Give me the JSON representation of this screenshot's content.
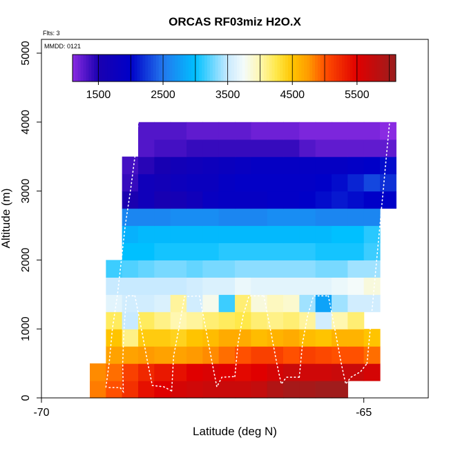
{
  "chart_data": {
    "type": "heatmap",
    "title": "ORCAS RF03miz H2O.X",
    "xlabel": "Latitude (deg N)",
    "ylabel": "Altitude (m)",
    "notes": {
      "flights": "Flts: 3",
      "date": "MMDD: 0121"
    },
    "xlim": [
      -70,
      -64
    ],
    "ylim": [
      0,
      5200
    ],
    "x_ticks": [
      -70,
      -65
    ],
    "x_tick_labels": [
      "-70",
      "-65"
    ],
    "y_ticks": [
      0,
      1000,
      2000,
      3000,
      4000,
      5000
    ],
    "y_tick_labels": [
      "0",
      "1000",
      "2000",
      "3000",
      "4000",
      "5000"
    ],
    "colorbar": {
      "range": [
        1100,
        6100
      ],
      "ticks": [
        1500,
        2500,
        3500,
        4500,
        5500
      ],
      "tick_labels": [
        "1500",
        "2500",
        "3500",
        "4500",
        "5500"
      ],
      "stops": [
        {
          "v": 1100,
          "c": "#8a2be2"
        },
        {
          "v": 1500,
          "c": "#1a00b0"
        },
        {
          "v": 2000,
          "c": "#0000c8"
        },
        {
          "v": 2500,
          "c": "#2277ee"
        },
        {
          "v": 3000,
          "c": "#00c0ff"
        },
        {
          "v": 3500,
          "c": "#c8eaff"
        },
        {
          "v": 3750,
          "c": "#f4fbfa"
        },
        {
          "v": 4000,
          "c": "#fff7b0"
        },
        {
          "v": 4250,
          "c": "#ffe84a"
        },
        {
          "v": 4500,
          "c": "#ffc400"
        },
        {
          "v": 4750,
          "c": "#ff9a00"
        },
        {
          "v": 5000,
          "c": "#ff5000"
        },
        {
          "v": 5500,
          "c": "#e00000"
        },
        {
          "v": 6100,
          "c": "#9a1e1e"
        }
      ]
    },
    "cell_width_deg": 0.25,
    "cell_height_m": 250,
    "rows": [
      {
        "y": 0,
        "x_start": -69.25,
        "values": [
          4850,
          5000,
          5200,
          5400,
          5500,
          5600,
          5650,
          5700,
          5700,
          5700,
          5750,
          5900,
          6000,
          6000,
          6050,
          6050
        ]
      },
      {
        "y": 250,
        "x_start": -69.25,
        "values": [
          4800,
          4900,
          5100,
          5250,
          5350,
          5400,
          5500,
          5550,
          5500,
          5450,
          5500,
          5600,
          5700,
          5650,
          5650,
          5700,
          5700,
          5600
        ]
      },
      {
        "y": 500,
        "x_start": -69.0,
        "values": [
          4700,
          4700,
          4750,
          4700,
          4700,
          4750,
          4800,
          4900,
          5000,
          5100,
          5100,
          5000,
          5100,
          5050,
          5000,
          5000,
          4900
        ]
      },
      {
        "y": 750,
        "x_start": -69.0,
        "values": [
          4500,
          4100,
          4450,
          4450,
          4400,
          4500,
          4550,
          4650,
          4650,
          4550,
          4600,
          4650,
          4550,
          4500,
          4600,
          4600,
          4500
        ]
      },
      {
        "y": 1000,
        "x_start": -69.0,
        "values": [
          4200,
          3500,
          4200,
          4100,
          4000,
          4050,
          4150,
          4200,
          4250,
          4150,
          4100,
          4150,
          4050,
          3550,
          4000,
          4150
        ]
      },
      {
        "y": 1250,
        "x_start": -69.0,
        "values": [
          3650,
          3550,
          3550,
          3600,
          4050,
          3550,
          3800,
          3150,
          4150,
          3850,
          3950,
          3900,
          3400,
          2800,
          3400,
          3550,
          3550
        ]
      },
      {
        "y": 1500,
        "x_start": -69.0,
        "values": [
          3500,
          3500,
          3500,
          3500,
          3500,
          3550,
          3600,
          3600,
          3700,
          3650,
          3650,
          3650,
          3650,
          3650,
          3700,
          3750,
          3850
        ]
      },
      {
        "y": 1750,
        "x_start": -69.0,
        "values": [
          3150,
          3200,
          3250,
          3300,
          3300,
          3250,
          3300,
          3300,
          3350,
          3350,
          3350,
          3350,
          3350,
          3300,
          3300,
          3400,
          3400
        ]
      },
      {
        "y": 2000,
        "x_start": -68.75,
        "values": [
          3000,
          3000,
          3050,
          3050,
          3050,
          3050,
          3100,
          3100,
          3100,
          3100,
          3100,
          3100,
          3050,
          3050,
          3050,
          3150
        ]
      },
      {
        "y": 2250,
        "x_start": -68.75,
        "values": [
          2900,
          2950,
          2950,
          2950,
          2950,
          2950,
          2950,
          2950,
          2950,
          2950,
          2950,
          2950,
          2950,
          3000,
          3000,
          3100
        ]
      },
      {
        "y": 2500,
        "x_start": -68.75,
        "values": [
          2600,
          2600,
          2600,
          2650,
          2650,
          2650,
          2600,
          2600,
          2600,
          2650,
          2650,
          2650,
          2600,
          2600,
          2600,
          2600
        ]
      },
      {
        "y": 2750,
        "x_start": -68.75,
        "values": [
          1500,
          1700,
          1550,
          1600,
          1700,
          1850,
          1900,
          1900,
          1900,
          1950,
          1950,
          2000,
          2050,
          2100,
          2050,
          2000,
          2000
        ]
      },
      {
        "y": 3000,
        "x_start": -68.75,
        "values": [
          1400,
          1700,
          1650,
          1750,
          1800,
          1800,
          1900,
          1950,
          1950,
          1950,
          1950,
          1950,
          2000,
          2050,
          2150,
          2300,
          2200
        ]
      },
      {
        "y": 3250,
        "x_start": -68.75,
        "values": [
          1350,
          1450,
          1550,
          1650,
          1700,
          1750,
          1800,
          1850,
          1900,
          1900,
          1900,
          1900,
          1900,
          1900,
          1950,
          2000,
          2050
        ]
      },
      {
        "y": 3500,
        "x_start": -68.5,
        "values": [
          1300,
          1350,
          1350,
          1400,
          1400,
          1400,
          1400,
          1400,
          1400,
          1400,
          1300,
          1250,
          1250,
          1250,
          1250,
          1250
        ]
      },
      {
        "y": 3750,
        "x_start": -68.5,
        "values": [
          1300,
          1300,
          1300,
          1250,
          1250,
          1250,
          1250,
          1200,
          1200,
          1200,
          1150,
          1150,
          1150,
          1150,
          1150,
          1100
        ]
      }
    ],
    "profiles": [
      [
        [
          -68.5,
          4000
        ],
        [
          -68.55,
          3500
        ],
        [
          -68.62,
          3000
        ],
        [
          -68.7,
          2500
        ],
        [
          -68.76,
          2000
        ],
        [
          -68.82,
          1500
        ],
        [
          -68.9,
          1000
        ],
        [
          -68.95,
          500
        ],
        [
          -69.0,
          150
        ]
      ],
      [
        [
          -68.95,
          150
        ],
        [
          -68.78,
          150
        ],
        [
          -68.73,
          90
        ],
        [
          -68.74,
          500
        ],
        [
          -68.72,
          1000
        ],
        [
          -68.68,
          1480
        ],
        [
          -68.55,
          1480
        ]
      ],
      [
        [
          -68.55,
          1480
        ],
        [
          -68.45,
          1000
        ],
        [
          -68.35,
          500
        ],
        [
          -68.28,
          180
        ],
        [
          -68.1,
          160
        ],
        [
          -67.98,
          100
        ]
      ],
      [
        [
          -67.98,
          100
        ],
        [
          -67.95,
          600
        ],
        [
          -67.87,
          1000
        ],
        [
          -67.78,
          1470
        ],
        [
          -67.55,
          1480
        ]
      ],
      [
        [
          -67.55,
          1480
        ],
        [
          -67.45,
          1000
        ],
        [
          -67.35,
          500
        ],
        [
          -67.28,
          160
        ],
        [
          -67.2,
          300
        ],
        [
          -67.0,
          310
        ]
      ],
      [
        [
          -67.0,
          310
        ],
        [
          -66.95,
          800
        ],
        [
          -66.87,
          1200
        ],
        [
          -66.78,
          1480
        ],
        [
          -66.55,
          1480
        ]
      ],
      [
        [
          -66.55,
          1480
        ],
        [
          -66.45,
          1000
        ],
        [
          -66.35,
          500
        ],
        [
          -66.28,
          200
        ],
        [
          -66.2,
          300
        ],
        [
          -66.0,
          300
        ]
      ],
      [
        [
          -66.0,
          300
        ],
        [
          -65.95,
          800
        ],
        [
          -65.87,
          1200
        ],
        [
          -65.78,
          1480
        ],
        [
          -65.55,
          1480
        ]
      ],
      [
        [
          -65.55,
          1480
        ],
        [
          -65.45,
          1000
        ],
        [
          -65.35,
          500
        ],
        [
          -65.28,
          200
        ],
        [
          -65.2,
          300
        ],
        [
          -65.05,
          380
        ],
        [
          -64.95,
          500
        ]
      ],
      [
        [
          -64.95,
          500
        ],
        [
          -64.9,
          1000
        ],
        [
          -64.85,
          1500
        ],
        [
          -64.8,
          2000
        ],
        [
          -64.75,
          2500
        ],
        [
          -64.7,
          3000
        ],
        [
          -64.65,
          3500
        ],
        [
          -64.6,
          4000
        ]
      ]
    ]
  }
}
